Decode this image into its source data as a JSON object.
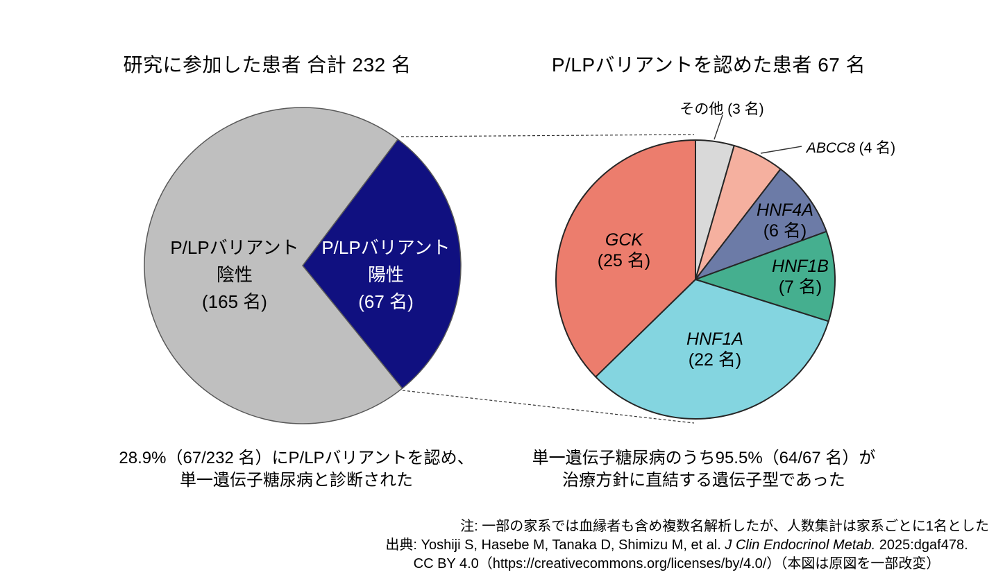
{
  "left_chart": {
    "title": "研究に参加した患者 合計 232 名",
    "slice_labels": {
      "negative": {
        "line1": "P/LPバリアント",
        "line2": "陰性",
        "line3": "(165 名)"
      },
      "positive": {
        "line1": "P/LPバリアント",
        "line2": "陽性",
        "line3": "(67 名)"
      }
    },
    "caption": {
      "line1": "28.9%（67/232 名）にP/LPバリアントを認め、",
      "line2": "単一遺伝子糖尿病と診断された"
    }
  },
  "right_chart": {
    "title": "P/LPバリアントを認めた患者 67 名",
    "slice_labels": {
      "gck": {
        "name": "GCK",
        "count": "(25 名)"
      },
      "hnf1a": {
        "name": "HNF1A",
        "count": "(22 名)"
      },
      "hnf1b": {
        "name": "HNF1B",
        "count": "(7 名)"
      },
      "hnf4a": {
        "name": "HNF4A",
        "count": "(6 名)"
      }
    },
    "outer_labels": {
      "other": {
        "text": "その他 (3 名)"
      },
      "abcc8": {
        "name": "ABCC8",
        "rest": " (4 名)"
      }
    },
    "caption": {
      "line1": "単一遺伝子糖尿病のうち95.5%（64/67 名）が",
      "line2": "治療方針に直結する遺伝子型であった"
    }
  },
  "footer": {
    "note": "注: 一部の家系では血縁者も含め複数名解析したが、人数集計は家系ごとに1名とした",
    "source": {
      "prefix": "出典: Yoshiji S, Hasebe M, Tanaka D, Shimizu M, et al. ",
      "journal": "J Clin Endocrinol Metab.",
      "suffix": " 2025:dgaf478.",
      "line2": "CC BY 4.0（https://creativecommons.org/licenses/by/4.0/）（本図は原図を一部改変）"
    }
  },
  "chart_data": [
    {
      "type": "pie",
      "title": "研究に参加した患者 合計 232 名",
      "categories": [
        "P/LPバリアント陽性",
        "P/LPバリアント陰性"
      ],
      "values": [
        67,
        165
      ],
      "total": 232,
      "percent_positive": "28.9%",
      "ids": [
        "positive",
        "negative"
      ],
      "colors": [
        "#101080",
        "#BFBFBF"
      ],
      "stroke": "#595959",
      "start_angle_deg": 37,
      "legend": "none"
    },
    {
      "type": "pie",
      "title": "P/LPバリアントを認めた患者 67 名",
      "categories": [
        "その他",
        "ABCC8",
        "HNF4A",
        "HNF1B",
        "HNF1A",
        "GCK"
      ],
      "values": [
        3,
        4,
        6,
        7,
        22,
        25
      ],
      "total": 67,
      "percent_actionable": "95.5%",
      "ids": [
        "other",
        "abcc8",
        "hnf4a",
        "hnf1b",
        "hnf1a",
        "gck"
      ],
      "colors": [
        "#D9D9D9",
        "#F5B09F",
        "#6C7BA7",
        "#45AF8F",
        "#84D5E0",
        "#EC7D6D"
      ],
      "stroke": "#262626",
      "start_angle_deg": 0,
      "legend": "none"
    }
  ]
}
